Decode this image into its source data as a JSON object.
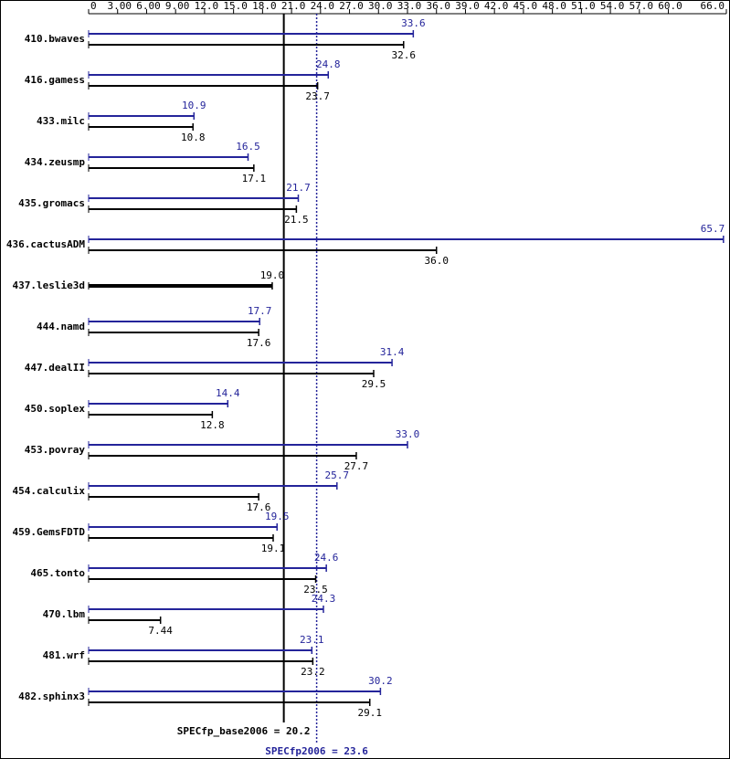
{
  "chart_data": {
    "type": "bar",
    "orientation": "horizontal",
    "categories": [
      "410.bwaves",
      "416.gamess",
      "433.milc",
      "434.zeusmp",
      "435.gromacs",
      "436.cactusADM",
      "437.leslie3d",
      "444.namd",
      "447.dealII",
      "450.soplex",
      "453.povray",
      "454.calculix",
      "459.GemsFDTD",
      "465.tonto",
      "470.lbm",
      "481.wrf",
      "482.sphinx3"
    ],
    "series": [
      {
        "color": "#24249a",
        "values": [
          33.6,
          24.8,
          10.9,
          16.5,
          21.7,
          65.7,
          null,
          17.7,
          31.4,
          14.4,
          33.0,
          25.7,
          19.5,
          24.6,
          24.3,
          23.1,
          30.2
        ],
        "value_labels": [
          "33.6",
          "24.8",
          "10.9",
          "16.5",
          "21.7",
          "65.7",
          null,
          "17.7",
          "31.4",
          "14.4",
          "33.0",
          "25.7",
          "19.5",
          "24.6",
          "24.3",
          "23.1",
          "30.2"
        ]
      },
      {
        "color": "#000000",
        "values": [
          32.6,
          23.7,
          10.8,
          17.1,
          21.5,
          36.0,
          19.0,
          17.6,
          29.5,
          12.8,
          27.7,
          17.6,
          19.1,
          23.5,
          7.44,
          23.2,
          29.1
        ],
        "value_labels": [
          "32.6",
          "23.7",
          "10.8",
          "17.1",
          "21.5",
          "36.0",
          "19.0",
          "17.6",
          "29.5",
          "12.8",
          "27.7",
          "17.6",
          "19.1",
          "23.5",
          "7.44",
          "23.2",
          "29.1"
        ]
      }
    ],
    "xlim": [
      0,
      66
    ],
    "xticks": [
      0,
      {
        "value": 3,
        "label": "3.00"
      },
      {
        "value": 6,
        "label": "6.00"
      },
      {
        "value": 9,
        "label": "9.00"
      },
      {
        "value": 12,
        "label": "12.0"
      },
      {
        "value": 15,
        "label": "15.0"
      },
      {
        "value": 18,
        "label": "18.0"
      },
      {
        "value": 21,
        "label": "21.0"
      },
      {
        "value": 24,
        "label": "24.0"
      },
      {
        "value": 27,
        "label": "27.0"
      },
      {
        "value": 30,
        "label": "30.0"
      },
      {
        "value": 33,
        "label": "33.0"
      },
      {
        "value": 36,
        "label": "36.0"
      },
      {
        "value": 39,
        "label": "39.0"
      },
      {
        "value": 42,
        "label": "42.0"
      },
      {
        "value": 45,
        "label": "45.0"
      },
      {
        "value": 48,
        "label": "48.0"
      },
      {
        "value": 51,
        "label": "51.0"
      },
      {
        "value": 54,
        "label": "54.0"
      },
      {
        "value": 57,
        "label": "57.0"
      },
      {
        "value": 60,
        "label": "60.0"
      },
      {
        "value": 66,
        "label": "66.0"
      }
    ],
    "reference_lines": [
      {
        "label": "SPECfp_base2006 = 20.2",
        "value": 20.2,
        "color": "#000000",
        "style": "solid"
      },
      {
        "label": "SPECfp2006 = 23.6",
        "value": 23.6,
        "color": "#24249a",
        "style": "dotted"
      }
    ]
  }
}
